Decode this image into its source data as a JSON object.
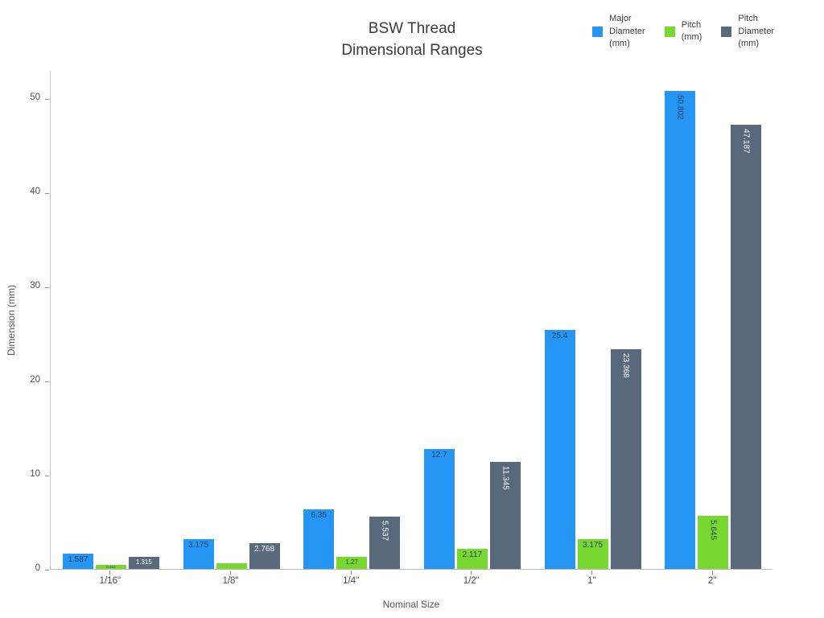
{
  "chart_data": {
    "type": "bar",
    "title": "BSW Thread\nDimensional Ranges",
    "xlabel": "Nominal Size",
    "ylabel": "Dimension (mm)",
    "categories": [
      "1/16\"",
      "1/8\"",
      "1/4\"",
      "1/2\"",
      "1\"",
      "2\""
    ],
    "ylim": [
      0,
      53
    ],
    "yticks": [
      0,
      10,
      20,
      30,
      40,
      50
    ],
    "grid": false,
    "legend_position": "top-right",
    "series": [
      {
        "name": "Major\nDiameter\n(mm)",
        "color": "#2596f3",
        "label_color": "#2a3f5f",
        "values": [
          1.587,
          3.175,
          6.35,
          12.7,
          25.4,
          50.802
        ],
        "labels": [
          "1.587",
          "3.175",
          "6.35",
          "12.7",
          "25.4",
          "50.802"
        ],
        "label_orient": [
          "h",
          "h",
          "h",
          "h",
          "h",
          "v"
        ]
      },
      {
        "name": "Pitch\n(mm)",
        "color": "#79d82f",
        "label_color": "#2a3f5f",
        "values": [
          0.423,
          0.635,
          1.27,
          2.117,
          3.175,
          5.645
        ],
        "labels": [
          "0.423",
          "",
          "1.27",
          "2.117",
          "3.175",
          "5.645"
        ],
        "label_orient": [
          "h",
          "h",
          "h",
          "h",
          "h",
          "v"
        ]
      },
      {
        "name": "Pitch\nDiameter\n(mm)",
        "color": "#57697b",
        "label_color": "#ffffff",
        "values": [
          1.315,
          2.768,
          5.537,
          11.345,
          23.368,
          47.187
        ],
        "labels": [
          "1.315",
          "2.768",
          "5.537",
          "11.345",
          "23.368",
          "47.187"
        ],
        "label_orient": [
          "h",
          "h",
          "v",
          "v",
          "v",
          "v"
        ]
      }
    ]
  }
}
